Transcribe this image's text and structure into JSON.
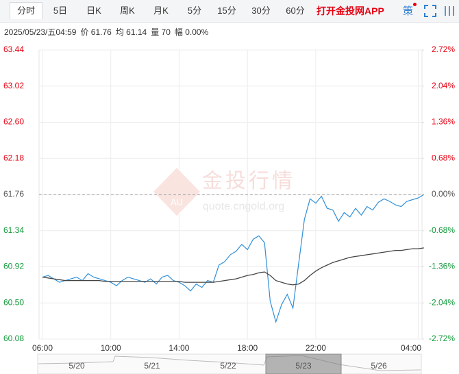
{
  "toolbar": {
    "tabs": [
      "分时",
      "5日",
      "日K",
      "周K",
      "月K",
      "5分",
      "15分",
      "30分",
      "60分"
    ],
    "promo": "打开金投网APP",
    "strategy": "策"
  },
  "info": [
    "2025/05/23/五04:59",
    "价 61.76",
    "均 61.14",
    "量 70",
    "幅 0.00%"
  ],
  "watermark": {
    "brand": "金投行情",
    "url": "quote.cngold.org",
    "logo": "AU"
  },
  "chart_data": {
    "type": "line",
    "categories": [
      "06:00",
      null,
      null,
      null,
      null,
      null,
      null,
      null,
      null,
      null,
      null,
      null,
      "10:00",
      null,
      null,
      null,
      null,
      null,
      null,
      null,
      null,
      null,
      null,
      null,
      "14:00",
      null,
      null,
      null,
      null,
      null,
      null,
      null,
      null,
      null,
      null,
      null,
      "18:00",
      null,
      null,
      null,
      null,
      null,
      null,
      null,
      null,
      null,
      null,
      null,
      "22:00",
      null,
      null,
      null,
      null,
      null,
      null,
      null,
      null,
      null,
      null,
      null,
      null,
      null,
      null,
      null,
      null,
      null,
      "04:00",
      null
    ],
    "series": [
      {
        "name": "价",
        "color": "#2f8fd8",
        "values": [
          60.8,
          60.82,
          60.78,
          60.74,
          60.76,
          60.78,
          60.8,
          60.76,
          60.84,
          60.8,
          60.78,
          60.76,
          60.74,
          60.7,
          60.76,
          60.8,
          60.78,
          60.76,
          60.74,
          60.78,
          60.72,
          60.8,
          60.82,
          60.76,
          60.74,
          60.7,
          60.64,
          60.72,
          60.68,
          60.76,
          60.74,
          60.94,
          60.98,
          61.06,
          61.1,
          61.18,
          61.12,
          61.24,
          61.28,
          61.2,
          60.52,
          60.28,
          60.48,
          60.6,
          60.44,
          60.96,
          61.47,
          61.71,
          61.66,
          61.74,
          61.6,
          61.58,
          61.45,
          61.55,
          61.5,
          61.6,
          61.52,
          61.62,
          61.58,
          61.67,
          61.71,
          61.68,
          61.64,
          61.62,
          61.68,
          61.7,
          61.72,
          61.76
        ]
      },
      {
        "name": "均",
        "color": "#444444",
        "values": [
          60.8,
          60.79,
          60.78,
          60.77,
          60.76,
          60.76,
          60.76,
          60.76,
          60.76,
          60.76,
          60.76,
          60.75,
          60.75,
          60.75,
          60.75,
          60.75,
          60.75,
          60.75,
          60.75,
          60.75,
          60.75,
          60.75,
          60.75,
          60.75,
          60.75,
          60.74,
          60.74,
          60.74,
          60.74,
          60.74,
          60.74,
          60.75,
          60.76,
          60.77,
          60.78,
          60.8,
          60.82,
          60.83,
          60.85,
          60.86,
          60.82,
          60.76,
          60.74,
          60.72,
          60.71,
          60.72,
          60.76,
          60.82,
          60.87,
          60.91,
          60.94,
          60.97,
          60.99,
          61.01,
          61.03,
          61.04,
          61.05,
          61.06,
          61.07,
          61.08,
          61.09,
          61.1,
          61.11,
          61.11,
          61.12,
          61.13,
          61.13,
          61.14
        ]
      }
    ],
    "reference": 61.76,
    "ylim": [
      60.08,
      63.44
    ],
    "yticks": [
      63.44,
      63.02,
      {
        "value": 62.6,
        "label": "62.60"
      },
      62.18,
      61.76,
      61.34,
      60.92,
      {
        "value": 60.5,
        "label": "60.50"
      },
      60.08
    ],
    "y2lim": [
      -2.72,
      2.72
    ],
    "y2ticks": [
      {
        "value": 2.72,
        "label": "2.72%"
      },
      {
        "value": 2.04,
        "label": "2.04%"
      },
      {
        "value": 1.36,
        "label": "1.36%"
      },
      {
        "value": 0.68,
        "label": "0.68%"
      },
      {
        "value": 0,
        "label": "0.00%"
      },
      {
        "value": -0.68,
        "label": "-0.68%"
      },
      {
        "value": -1.36,
        "label": "-1.36%"
      },
      {
        "value": -2.04,
        "label": "-2.04%"
      },
      {
        "value": -2.72,
        "label": "-2.72%"
      }
    ],
    "grid": true
  },
  "navigator": {
    "labels": [
      "5/20",
      "5/21",
      "5/22",
      "5/23",
      "5/26"
    ]
  }
}
